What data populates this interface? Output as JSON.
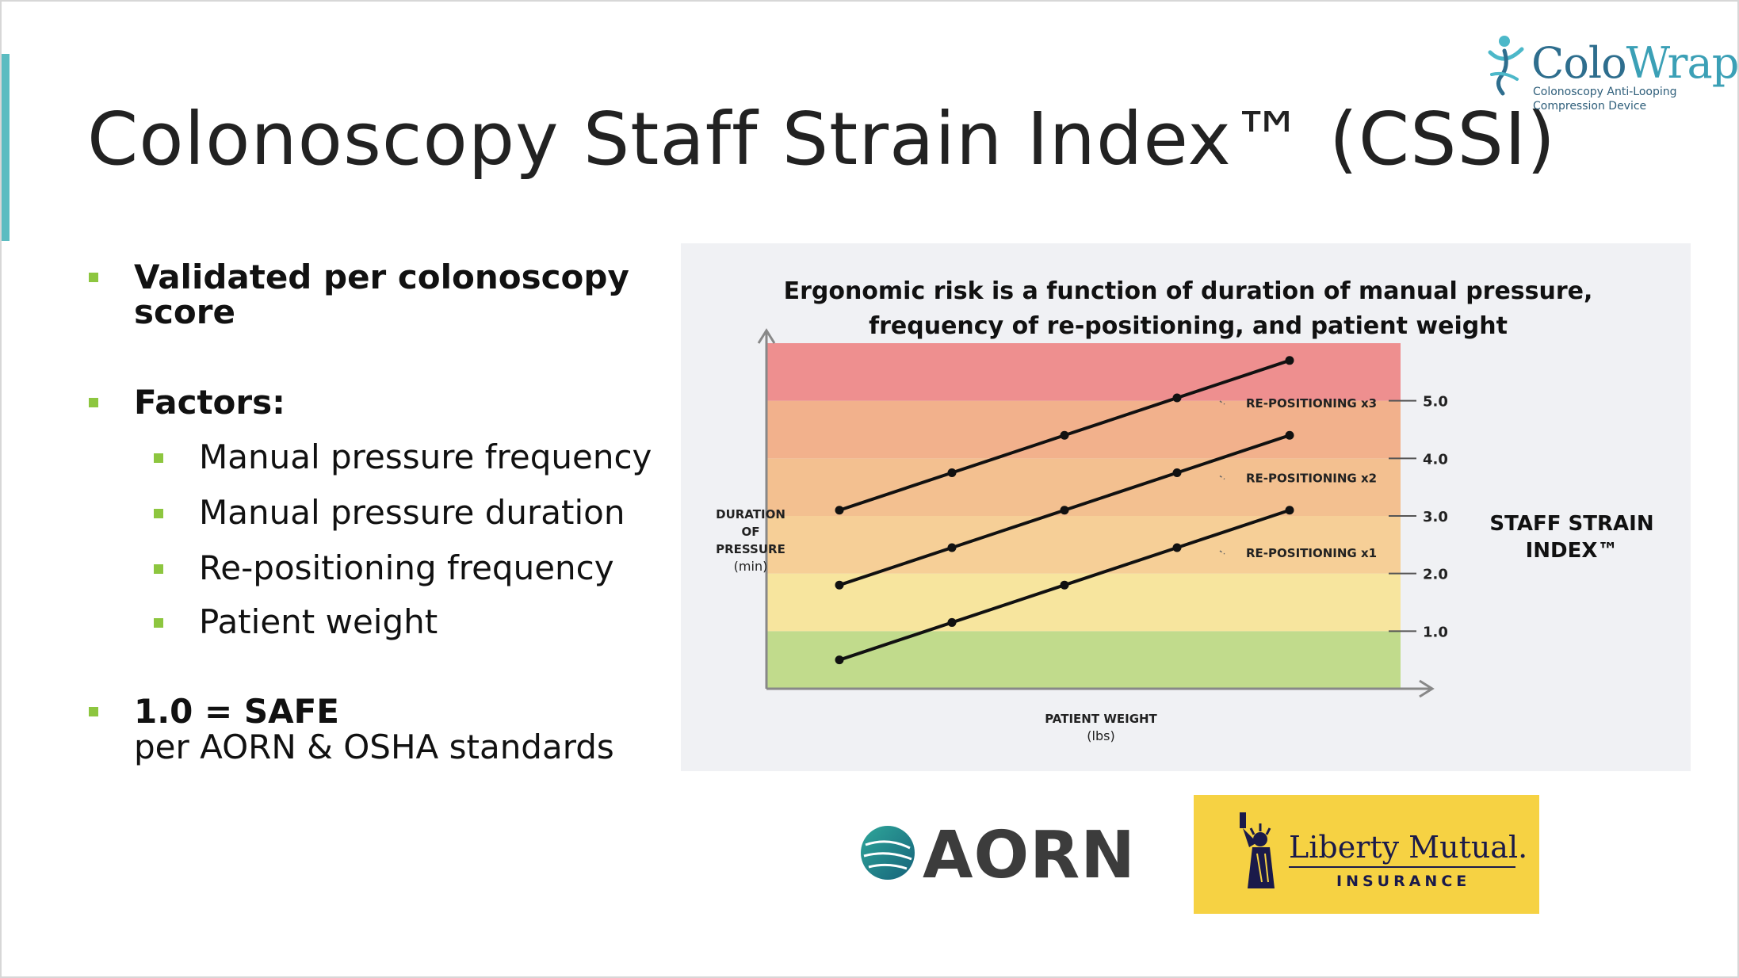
{
  "title": "Colonoscopy Staff Strain Index™ (CSSI)",
  "brand": {
    "name_part1": "Colo",
    "name_part2": "Wrap",
    "tagline1": "Colonoscopy Anti-Looping",
    "tagline2": "Compression Device"
  },
  "bullets": {
    "validated_line1": "Validated per colonoscopy",
    "validated_line2": "score",
    "factors_label": "Factors:",
    "factors": [
      "Manual pressure frequency",
      "Manual pressure duration",
      "Re-positioning frequency",
      "Patient weight"
    ],
    "safe_label": "1.0 = SAFE",
    "safe_sub": "per AORN & OSHA standards"
  },
  "colors": {
    "accent_bar": "#5bbcc1",
    "bullet_marker": "#8dc63f",
    "band_green": "#c1db8c",
    "band_yellow": "#f7e59e",
    "band_light_orange": "#f6cf97",
    "band_orange": "#f3c090",
    "band_dark_orange": "#f2b18c",
    "band_red": "#ee8f8f"
  },
  "chart_data": {
    "type": "line",
    "title_line1": "Ergonomic risk is a function of duration of manual pressure,",
    "title_line2": "frequency of re-positioning, and patient weight",
    "ylabel_lines": [
      "DURATION",
      "OF",
      "PRESSURE",
      "(min)"
    ],
    "xlabel_lines": [
      "PATIENT WEIGHT",
      "(lbs)"
    ],
    "right_label_lines": [
      "STAFF STRAIN",
      "INDEX™"
    ],
    "index_ticks": [
      "1.0",
      "2.0",
      "3.0",
      "4.0",
      "5.0"
    ],
    "index_tick_values": [
      1,
      2,
      3,
      4,
      5
    ],
    "bands": [
      {
        "from": 0,
        "to": 1,
        "color": "#c1db8c"
      },
      {
        "from": 1,
        "to": 2,
        "color": "#f7e59e"
      },
      {
        "from": 2,
        "to": 3,
        "color": "#f6cf97"
      },
      {
        "from": 3,
        "to": 4,
        "color": "#f3c090"
      },
      {
        "from": 4,
        "to": 5,
        "color": "#f2b18c"
      },
      {
        "from": 5,
        "to": 6,
        "color": "#ee8f8f"
      }
    ],
    "ylim": [
      0,
      6
    ],
    "x": [
      1,
      2,
      3,
      4,
      5
    ],
    "xlim": [
      0,
      6.25
    ],
    "series": [
      {
        "name": "RE-POSITIONING x1",
        "values": [
          0.5,
          1.15,
          1.8,
          2.45,
          3.1
        ]
      },
      {
        "name": "RE-POSITIONING x2",
        "values": [
          1.8,
          2.45,
          3.1,
          3.75,
          4.4
        ]
      },
      {
        "name": "RE-POSITIONING x3",
        "values": [
          3.1,
          3.75,
          4.4,
          5.05,
          5.7
        ]
      }
    ]
  },
  "logos": {
    "aorn": "AORN",
    "liberty_name": "Liberty Mutual.",
    "liberty_sub": "INSURANCE"
  }
}
